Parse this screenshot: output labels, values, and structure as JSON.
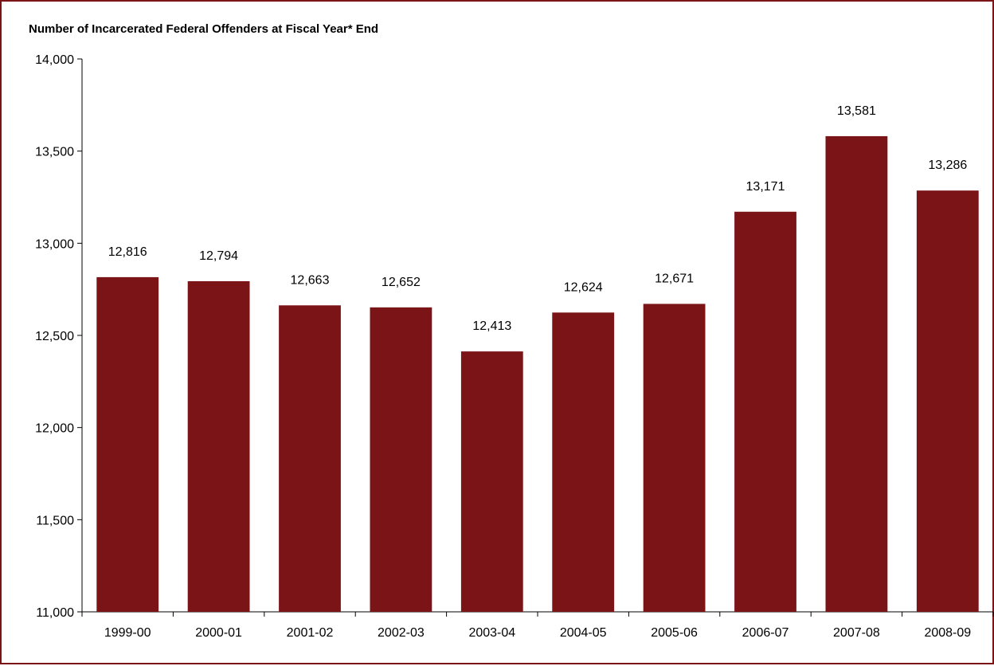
{
  "chart_data": {
    "type": "bar",
    "title": "Number of Incarcerated Federal Offenders at Fiscal Year* End",
    "xlabel": "",
    "ylabel": "",
    "categories": [
      "1999-00",
      "2000-01",
      "2001-02",
      "2002-03",
      "2003-04",
      "2004-05",
      "2005-06",
      "2006-07",
      "2007-08",
      "2008-09"
    ],
    "values": [
      12816,
      12794,
      12663,
      12652,
      12413,
      12624,
      12671,
      13171,
      13581,
      13286
    ],
    "data_labels": [
      "12,816",
      "12,794",
      "12,663",
      "12,652",
      "12,413",
      "12,624",
      "12,671",
      "13,171",
      "13,581",
      "13,286"
    ],
    "ylim": [
      11000,
      14000
    ],
    "y_ticks": [
      11000,
      11500,
      12000,
      12500,
      13000,
      13500,
      14000
    ],
    "y_tick_labels": [
      "11,000",
      "11,500",
      "12,000",
      "12,500",
      "13,000",
      "13,500",
      "14,000"
    ],
    "grid": false,
    "legend": "none",
    "colors": {
      "bar": "#7b1416",
      "frame": "#7b1416",
      "axis": "#000000"
    }
  }
}
